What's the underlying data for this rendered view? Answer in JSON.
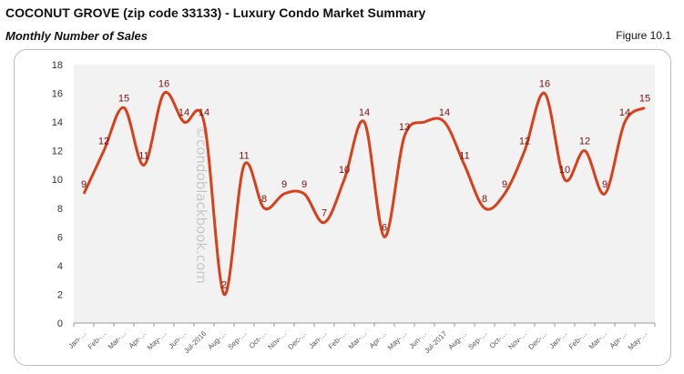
{
  "header": {
    "title": "COCONUT GROVE (zip code 33133) - Luxury Condo Market Summary",
    "subtitle": "Monthly Number of Sales",
    "figure": "Figure 10.1"
  },
  "watermark": "©condoblackbook.com",
  "chart_data": {
    "type": "line",
    "categories": [
      "Jan-…",
      "Feb-…",
      "Mar-…",
      "Apr-…",
      "May-…",
      "Jun-…",
      "Jul-2016",
      "Aug-…",
      "Sep-…",
      "Oct-…",
      "Nov-…",
      "Dec-…",
      "Jan-…",
      "Feb-…",
      "Mar-…",
      "Apr-…",
      "May-…",
      "Jun-…",
      "Jul-2017",
      "Aug-…",
      "Sep-…",
      "Oct-…",
      "Nov-…",
      "Dec-…",
      "Jan-…",
      "Feb-…",
      "Mar-…",
      "Apr-…",
      "May-…"
    ],
    "values": [
      9,
      12,
      15,
      11,
      16,
      14,
      14,
      2,
      11,
      8,
      9,
      9,
      7,
      10,
      14,
      6,
      13,
      14,
      14,
      11,
      8,
      9,
      12,
      16,
      10,
      12,
      9,
      14,
      15
    ],
    "data_labels": [
      "9",
      "12",
      "15",
      "11",
      "16",
      "14",
      "14",
      "2",
      "11",
      "8",
      "9",
      "9",
      "7",
      "10",
      "14",
      "6",
      "13",
      "",
      "14",
      "11",
      "8",
      "9",
      "12",
      "16",
      "10",
      "12",
      "9",
      "14",
      "15"
    ],
    "ylim": [
      0,
      18
    ],
    "yticks": [
      "0",
      "2",
      "4",
      "6",
      "8",
      "10",
      "12",
      "14",
      "16",
      "18"
    ],
    "grid": false,
    "line_color": "#d9401a",
    "label_color": "#7a1010",
    "plot_bg": "#f2f2f2"
  }
}
